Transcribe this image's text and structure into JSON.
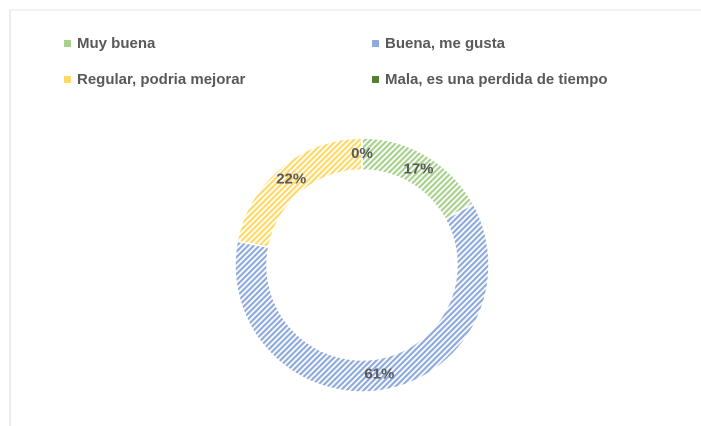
{
  "chart_data": {
    "type": "donut",
    "series": [
      {
        "name": "Muy buena",
        "color": "#a9d18e",
        "values": [
          17
        ]
      },
      {
        "name": "Buena, me gusta",
        "color": "#8faadc",
        "values": [
          61
        ]
      },
      {
        "name": "Regular, podria mejorar",
        "color": "#ffd966",
        "values": [
          22
        ]
      },
      {
        "name": "Mala, es una perdida de tiempo",
        "color": "#548235",
        "values": [
          0
        ]
      }
    ],
    "value_labels": [
      "17%",
      "61%",
      "22%",
      "0%"
    ],
    "legend": "top"
  }
}
